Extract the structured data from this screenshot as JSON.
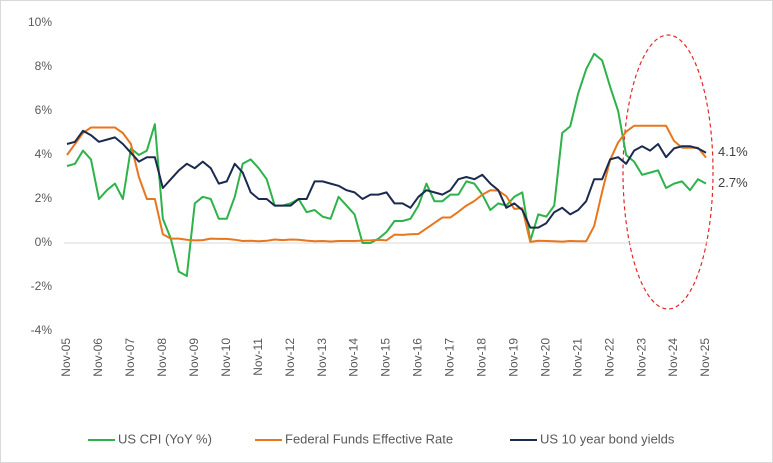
{
  "chart_data": {
    "type": "line",
    "categories": [
      "Nov-05",
      null,
      null,
      null,
      "Nov-06",
      null,
      null,
      null,
      "Nov-07",
      null,
      null,
      null,
      "Nov-08",
      null,
      null,
      null,
      "Nov-09",
      null,
      null,
      null,
      "Nov-10",
      null,
      null,
      null,
      "Nov-11",
      null,
      null,
      null,
      "Nov-12",
      null,
      null,
      null,
      "Nov-13",
      null,
      null,
      null,
      "Nov-14",
      null,
      null,
      null,
      "Nov-15",
      null,
      null,
      null,
      "Nov-16",
      null,
      null,
      null,
      "Nov-17",
      null,
      null,
      null,
      "Nov-18",
      null,
      null,
      null,
      "Nov-19",
      null,
      null,
      null,
      "Nov-20",
      null,
      null,
      null,
      "Nov-21",
      null,
      null,
      null,
      "Nov-22",
      null,
      null,
      null,
      "Nov-23",
      null,
      null,
      null,
      "Nov-24",
      null,
      null,
      null,
      "Nov-25"
    ],
    "series": [
      {
        "name": "US CPI (YoY %)",
        "color": "#2eb24a",
        "values": [
          3.5,
          3.6,
          4.2,
          3.8,
          2.0,
          2.4,
          2.7,
          2.0,
          4.3,
          4.0,
          4.2,
          5.4,
          1.1,
          0.2,
          -1.3,
          -1.5,
          1.8,
          2.1,
          2.0,
          1.1,
          1.1,
          2.1,
          3.6,
          3.8,
          3.4,
          2.9,
          1.7,
          1.7,
          1.8,
          2.0,
          1.4,
          1.5,
          1.2,
          1.1,
          2.1,
          1.7,
          1.3,
          0.0,
          0.0,
          0.2,
          0.5,
          1.0,
          1.0,
          1.1,
          1.7,
          2.7,
          1.9,
          1.9,
          2.2,
          2.2,
          2.8,
          2.7,
          2.2,
          1.5,
          1.8,
          1.7,
          2.1,
          2.3,
          0.1,
          1.3,
          1.2,
          1.7,
          5.0,
          5.3,
          6.8,
          7.9,
          8.6,
          8.3,
          7.1,
          6.0,
          4.0,
          3.7,
          3.1,
          3.2,
          3.3,
          2.5,
          2.7,
          2.8,
          2.4,
          2.9,
          2.7
        ],
        "value_labels": [
          null,
          null,
          null,
          null,
          null,
          null,
          null,
          null,
          null,
          null,
          null,
          null,
          null,
          null,
          null,
          null,
          null,
          null,
          null,
          null,
          null,
          null,
          null,
          null,
          null,
          null,
          null,
          null,
          null,
          null,
          null,
          null,
          null,
          null,
          null,
          null,
          null,
          null,
          null,
          null,
          null,
          null,
          null,
          null,
          null,
          null,
          null,
          null,
          null,
          null,
          null,
          null,
          null,
          null,
          null,
          null,
          null,
          null,
          null,
          null,
          null,
          null,
          null,
          null,
          null,
          null,
          null,
          null,
          null,
          null,
          null,
          null,
          null,
          null,
          null,
          null,
          null,
          null,
          null,
          null,
          "2.7%"
        ]
      },
      {
        "name": "Federal Funds Effective Rate",
        "color": "#e8761e",
        "values": [
          4.0,
          4.5,
          5.0,
          5.25,
          5.25,
          5.25,
          5.25,
          5.0,
          4.5,
          3.0,
          2.0,
          2.0,
          0.4,
          0.2,
          0.2,
          0.15,
          0.12,
          0.13,
          0.2,
          0.19,
          0.19,
          0.15,
          0.09,
          0.1,
          0.08,
          0.1,
          0.16,
          0.13,
          0.16,
          0.15,
          0.11,
          0.08,
          0.09,
          0.07,
          0.09,
          0.09,
          0.09,
          0.11,
          0.12,
          0.14,
          0.12,
          0.38,
          0.37,
          0.4,
          0.41,
          0.66,
          0.91,
          1.16,
          1.16,
          1.42,
          1.7,
          1.91,
          2.2,
          2.4,
          2.38,
          2.13,
          1.55,
          1.58,
          0.05,
          0.1,
          0.09,
          0.08,
          0.06,
          0.09,
          0.08,
          0.08,
          0.77,
          2.33,
          3.78,
          4.57,
          5.06,
          5.33,
          5.33,
          5.33,
          5.33,
          5.33,
          4.64,
          4.33,
          4.33,
          4.33,
          3.88
        ]
      },
      {
        "name": "US 10 year bond yields",
        "color": "#1b2a4e",
        "values": [
          4.5,
          4.6,
          5.1,
          4.9,
          4.6,
          4.7,
          4.8,
          4.5,
          4.1,
          3.7,
          3.9,
          3.9,
          2.5,
          2.9,
          3.3,
          3.6,
          3.4,
          3.7,
          3.4,
          2.7,
          2.8,
          3.6,
          3.2,
          2.3,
          2.0,
          2.0,
          1.7,
          1.7,
          1.7,
          2.0,
          2.0,
          2.8,
          2.8,
          2.7,
          2.6,
          2.4,
          2.3,
          2.0,
          2.2,
          2.2,
          2.3,
          1.8,
          1.8,
          1.6,
          2.1,
          2.4,
          2.3,
          2.2,
          2.4,
          2.9,
          3.0,
          2.9,
          3.1,
          2.7,
          2.4,
          1.6,
          1.8,
          1.5,
          0.7,
          0.7,
          0.9,
          1.4,
          1.6,
          1.3,
          1.5,
          1.9,
          2.9,
          2.9,
          3.8,
          3.9,
          3.6,
          4.2,
          4.4,
          4.2,
          4.5,
          3.9,
          4.3,
          4.4,
          4.4,
          4.3,
          4.1
        ],
        "value_labels": [
          null,
          null,
          null,
          null,
          null,
          null,
          null,
          null,
          null,
          null,
          null,
          null,
          null,
          null,
          null,
          null,
          null,
          null,
          null,
          null,
          null,
          null,
          null,
          null,
          null,
          null,
          null,
          null,
          null,
          null,
          null,
          null,
          null,
          null,
          null,
          null,
          null,
          null,
          null,
          null,
          null,
          null,
          null,
          null,
          null,
          null,
          null,
          null,
          null,
          null,
          null,
          null,
          null,
          null,
          null,
          null,
          null,
          null,
          null,
          null,
          null,
          null,
          null,
          null,
          null,
          null,
          null,
          null,
          null,
          null,
          null,
          null,
          null,
          null,
          null,
          null,
          null,
          null,
          null,
          null,
          "4.1%"
        ]
      }
    ],
    "ylim": [
      -4,
      10
    ],
    "yticks": [
      {
        "value": -4,
        "label": "-4%"
      },
      {
        "value": -2,
        "label": "-2%"
      },
      {
        "value": 0,
        "label": "0%"
      },
      {
        "value": 2,
        "label": "2%"
      },
      {
        "value": 4,
        "label": "4%"
      },
      {
        "value": 6,
        "label": "6%"
      },
      {
        "value": 8,
        "label": "8%"
      },
      {
        "value": 10,
        "label": "10%"
      }
    ],
    "legend": "bottom"
  }
}
